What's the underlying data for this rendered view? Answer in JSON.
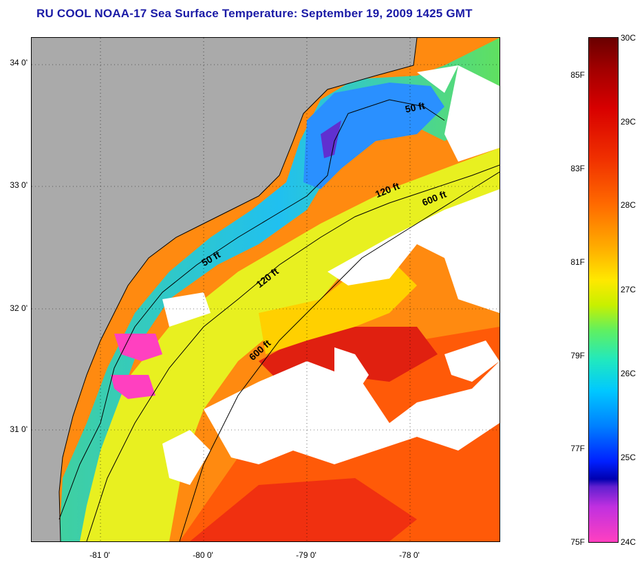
{
  "title": "RU COOL  NOAA-17  Sea Surface Temperature:  September 19, 2009 1425 GMT",
  "map": {
    "lat_ticks": [
      "34 0'",
      "33 0'",
      "32 0'",
      "31 0'"
    ],
    "lon_ticks": [
      "-81 0'",
      "-80 0'",
      "-79 0'",
      "-78 0'"
    ],
    "contours": [
      {
        "label": "50 ft"
      },
      {
        "label": "120 ft"
      },
      {
        "label": "600 ft"
      },
      {
        "label": "50 ft"
      },
      {
        "label": "120 ft"
      },
      {
        "label": "600 ft"
      }
    ],
    "colors": {
      "land": "#aaaaaa",
      "cloud": "#ffffff",
      "cold": "#ff40c0",
      "warm": "#8b0000"
    }
  },
  "colorbar": {
    "fahrenheit": [
      "85F",
      "83F",
      "81F",
      "79F",
      "77F",
      "75F"
    ],
    "celsius": [
      "30C",
      "29C",
      "28C",
      "27C",
      "26C",
      "25C",
      "24C"
    ]
  }
}
